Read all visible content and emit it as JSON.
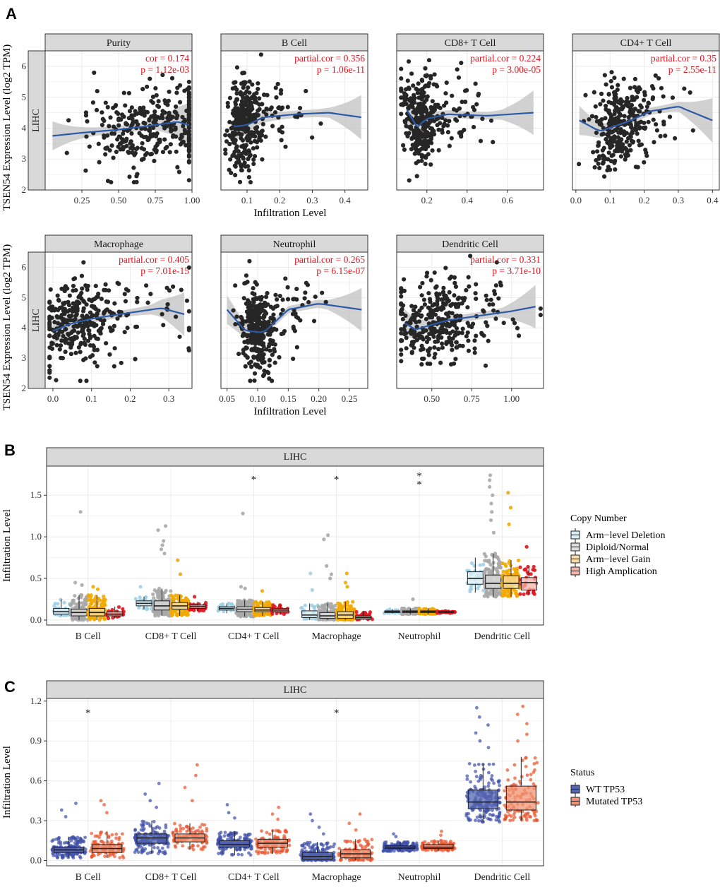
{
  "panel_labels": {
    "a": "A",
    "b": "B",
    "c": "C"
  },
  "chart_data": [
    {
      "type": "scatter",
      "panel": "A",
      "cancer": "LIHC",
      "ylabel": "TSEN54 Expression Level (log2 TPM)",
      "xlabel": "Infiltration Level",
      "ylim": [
        2,
        6.5
      ],
      "yticks": [
        2,
        3,
        4,
        5,
        6
      ],
      "yticklabels": [
        "2",
        "3",
        "4",
        "5",
        "6"
      ],
      "facets": [
        {
          "name": "Purity",
          "stat1": "cor = 0.174",
          "stat2": "p = 1.12e-03",
          "xlim": [
            0.0,
            1.0
          ],
          "xticks": [
            0.25,
            0.5,
            0.75,
            1.0
          ],
          "xticklabels": [
            "0.25",
            "0.50",
            "0.75",
            "1.00"
          ],
          "x_center": 0.68,
          "x_spread": 0.2,
          "skew": 0,
          "fit": [
            [
              0.05,
              3.75
            ],
            [
              0.25,
              3.85
            ],
            [
              0.5,
              3.95
            ],
            [
              0.75,
              4.1
            ],
            [
              0.9,
              4.2
            ],
            [
              0.98,
              4.1
            ]
          ]
        },
        {
          "name": "B Cell",
          "stat1": "partial.cor = 0.356",
          "stat2": "p = 1.06e-11",
          "xlim": [
            0.02,
            0.47
          ],
          "xticks": [
            0.1,
            0.2,
            0.3,
            0.4
          ],
          "xticklabels": [
            "0.1",
            "0.2",
            "0.3",
            "0.4"
          ],
          "x_center": 0.09,
          "x_spread": 0.025,
          "skew": 0.05,
          "fit": [
            [
              0.06,
              4.05
            ],
            [
              0.1,
              4.1
            ],
            [
              0.15,
              4.35
            ],
            [
              0.25,
              4.45
            ],
            [
              0.35,
              4.5
            ],
            [
              0.45,
              4.35
            ]
          ]
        },
        {
          "name": "CD8+ T Cell",
          "stat1": "partial.cor = 0.224",
          "stat2": "p = 3.00e-05",
          "xlim": [
            0.05,
            0.78
          ],
          "xticks": [
            0.2,
            0.4,
            0.6
          ],
          "xticklabels": [
            "0.2",
            "0.4",
            "0.6"
          ],
          "x_center": 0.17,
          "x_spread": 0.05,
          "skew": 0.08,
          "fit": [
            [
              0.1,
              4.6
            ],
            [
              0.15,
              4.05
            ],
            [
              0.2,
              4.3
            ],
            [
              0.3,
              4.45
            ],
            [
              0.5,
              4.4
            ],
            [
              0.73,
              4.5
            ]
          ]
        },
        {
          "name": "CD4+ T Cell",
          "stat1": "partial.cor = 0.35",
          "stat2": "p = 2.55e-11",
          "xlim": [
            -0.01,
            0.42
          ],
          "xticks": [
            0.0,
            0.1,
            0.2,
            0.3,
            0.4
          ],
          "xticklabels": [
            "0.0",
            "0.1",
            "0.2",
            "0.3",
            "0.4"
          ],
          "x_center": 0.12,
          "x_spread": 0.035,
          "skew": 0.05,
          "fit": [
            [
              0.01,
              4.25
            ],
            [
              0.07,
              3.9
            ],
            [
              0.15,
              4.2
            ],
            [
              0.22,
              4.55
            ],
            [
              0.3,
              4.7
            ],
            [
              0.4,
              4.25
            ]
          ]
        },
        {
          "name": "Macrophage",
          "stat1": "partial.cor = 0.405",
          "stat2": "p = 7.01e-15",
          "xlim": [
            -0.02,
            0.36
          ],
          "xticks": [
            0.0,
            0.1,
            0.2,
            0.3
          ],
          "xticklabels": [
            "0.0",
            "0.1",
            "0.2",
            "0.3"
          ],
          "x_center": 0.06,
          "x_spread": 0.05,
          "skew": 0.04,
          "fit": [
            [
              0.0,
              3.9
            ],
            [
              0.05,
              4.15
            ],
            [
              0.1,
              4.3
            ],
            [
              0.2,
              4.5
            ],
            [
              0.28,
              4.65
            ],
            [
              0.34,
              4.45
            ]
          ]
        },
        {
          "name": "Neutrophil",
          "stat1": "partial.cor = 0.265",
          "stat2": "p = 6.15e-07",
          "xlim": [
            0.04,
            0.28
          ],
          "xticks": [
            0.05,
            0.1,
            0.15,
            0.2,
            0.25
          ],
          "xticklabels": [
            "0.05",
            "0.10",
            "0.15",
            "0.20",
            "0.25"
          ],
          "x_center": 0.1,
          "x_spread": 0.014,
          "skew": 0.02,
          "fit": [
            [
              0.05,
              4.6
            ],
            [
              0.08,
              3.9
            ],
            [
              0.11,
              3.85
            ],
            [
              0.15,
              4.6
            ],
            [
              0.2,
              4.8
            ],
            [
              0.27,
              4.6
            ]
          ]
        },
        {
          "name": "Dendritic Cell",
          "stat1": "partial.cor = 0.331",
          "stat2": "p = 3.71e-10",
          "xlim": [
            0.28,
            1.2
          ],
          "xticks": [
            0.5,
            0.75,
            1.0
          ],
          "xticklabels": [
            "0.50",
            "0.75",
            "1.00"
          ],
          "x_center": 0.5,
          "x_spread": 0.12,
          "skew": 0.05,
          "fit": [
            [
              0.33,
              4.15
            ],
            [
              0.4,
              3.95
            ],
            [
              0.6,
              4.25
            ],
            [
              0.8,
              4.4
            ],
            [
              1.0,
              4.55
            ],
            [
              1.15,
              4.7
            ]
          ]
        }
      ]
    },
    {
      "type": "box",
      "panel": "B",
      "strip": "LIHC",
      "ylabel": "Infiltration Level",
      "ylim": [
        -0.06,
        1.85
      ],
      "yticks": [
        0.0,
        0.5,
        1.0,
        1.5
      ],
      "yticklabels": [
        "0.0",
        "0.5",
        "1.0",
        "1.5"
      ],
      "categories": [
        "B Cell",
        "CD8+ T Cell",
        "CD4+ T Cell",
        "Macrophage",
        "Neutrophil",
        "Dendritic Cell"
      ],
      "legend_title": "Copy Number",
      "groups": [
        {
          "name": "Arm−level Deletion",
          "fill": "#dbeef6",
          "point": "#9fd0e6"
        },
        {
          "name": "Diploid/Normal",
          "fill": "#dcdcdc",
          "point": "#a8a8a8"
        },
        {
          "name": "Arm−level Gain",
          "fill": "#f7dfa5",
          "point": "#f2a800"
        },
        {
          "name": "High Amplication",
          "fill": "#f6b6a9",
          "point": "#e0141e"
        }
      ],
      "boxes": [
        [
          [
            0.05,
            0.07,
            0.1,
            0.14,
            0.25
          ],
          [
            0.0,
            0.05,
            0.09,
            0.13,
            0.3
          ],
          [
            0.0,
            0.05,
            0.09,
            0.14,
            0.3
          ],
          [
            0.02,
            0.05,
            0.07,
            0.1,
            0.16
          ]
        ],
        [
          [
            0.13,
            0.17,
            0.2,
            0.23,
            0.28
          ],
          [
            0.05,
            0.12,
            0.17,
            0.23,
            0.38
          ],
          [
            0.05,
            0.13,
            0.17,
            0.21,
            0.3
          ],
          [
            0.11,
            0.14,
            0.16,
            0.18,
            0.22
          ]
        ],
        [
          [
            0.08,
            0.12,
            0.14,
            0.16,
            0.2
          ],
          [
            0.04,
            0.1,
            0.13,
            0.16,
            0.24
          ],
          [
            0.05,
            0.1,
            0.12,
            0.15,
            0.22
          ],
          [
            0.07,
            0.1,
            0.12,
            0.14,
            0.18
          ]
        ],
        [
          [
            0.0,
            0.03,
            0.06,
            0.11,
            0.2
          ],
          [
            0.0,
            0.02,
            0.05,
            0.09,
            0.2
          ],
          [
            0.0,
            0.02,
            0.06,
            0.1,
            0.22
          ],
          [
            0.0,
            0.01,
            0.03,
            0.05,
            0.1
          ]
        ],
        [
          [
            0.08,
            0.09,
            0.1,
            0.11,
            0.13
          ],
          [
            0.07,
            0.09,
            0.1,
            0.11,
            0.14
          ],
          [
            0.07,
            0.09,
            0.1,
            0.11,
            0.14
          ],
          [
            0.08,
            0.09,
            0.1,
            0.1,
            0.11
          ]
        ],
        [
          [
            0.33,
            0.43,
            0.5,
            0.58,
            0.75
          ],
          [
            0.28,
            0.38,
            0.44,
            0.54,
            0.8
          ],
          [
            0.28,
            0.38,
            0.44,
            0.53,
            0.72
          ],
          [
            0.3,
            0.36,
            0.45,
            0.51,
            0.65
          ]
        ]
      ],
      "outliers": [
        [
          [],
          [
            1.3,
            0.45,
            0.42
          ],
          [
            0.4,
            0.37
          ],
          []
        ],
        [
          [
            0.4
          ],
          [
            1.13,
            1.08,
            0.95,
            0.9,
            0.85,
            0.8
          ],
          [
            0.72,
            0.55
          ],
          [
            0.28
          ]
        ],
        [
          [],
          [
            1.28,
            0.4,
            0.38
          ],
          [
            0.35
          ],
          []
        ],
        [
          [
            0.56,
            0.36
          ],
          [
            1.02,
            0.97,
            0.65,
            0.55,
            0.5
          ],
          [
            0.56,
            0.45,
            0.4
          ],
          []
        ],
        [
          [],
          [
            0.25
          ],
          [],
          []
        ],
        [
          [],
          [
            1.74,
            1.68,
            1.6,
            1.5,
            1.4,
            1.3,
            1.2,
            1.05
          ],
          [
            1.53,
            1.35,
            1.15
          ],
          [
            0.88
          ]
        ]
      ],
      "significance": [
        {
          "category": 2,
          "text": "*",
          "y": 1.72
        },
        {
          "category": 3,
          "text": "*",
          "y": 1.72
        },
        {
          "category": 4,
          "text": "*",
          "y": 1.76
        },
        {
          "category": 4,
          "text": "*",
          "y": 1.66
        }
      ]
    },
    {
      "type": "box",
      "panel": "C",
      "strip": "LIHC",
      "ylabel": "Infiltration Level",
      "ylim": [
        -0.04,
        1.22
      ],
      "yticks": [
        0.0,
        0.3,
        0.6,
        0.9,
        1.2
      ],
      "yticklabels": [
        "0.0",
        "0.3",
        "0.6",
        "0.9",
        "1.2"
      ],
      "categories": [
        "B Cell",
        "CD8+ T Cell",
        "CD4+ T Cell",
        "Macrophage",
        "Neutrophil",
        "Dendritic Cell"
      ],
      "legend_title": "Status",
      "groups": [
        {
          "name": "WT TP53",
          "fill": "#5566b0",
          "point": "#3d4fa8"
        },
        {
          "name": "Mutated TP53",
          "fill": "#f29373",
          "point": "#e8532b"
        }
      ],
      "boxes": [
        [
          [
            0.02,
            0.06,
            0.08,
            0.1,
            0.18
          ],
          [
            0.02,
            0.06,
            0.09,
            0.12,
            0.22
          ]
        ],
        [
          [
            0.05,
            0.13,
            0.17,
            0.2,
            0.3
          ],
          [
            0.08,
            0.14,
            0.17,
            0.2,
            0.28
          ]
        ],
        [
          [
            0.04,
            0.1,
            0.12,
            0.15,
            0.22
          ],
          [
            0.05,
            0.1,
            0.13,
            0.16,
            0.23
          ]
        ],
        [
          [
            0.0,
            0.01,
            0.03,
            0.06,
            0.14
          ],
          [
            0.0,
            0.02,
            0.05,
            0.08,
            0.16
          ]
        ],
        [
          [
            0.07,
            0.09,
            0.1,
            0.11,
            0.14
          ],
          [
            0.07,
            0.09,
            0.1,
            0.12,
            0.15
          ]
        ],
        [
          [
            0.29,
            0.39,
            0.44,
            0.53,
            0.73
          ],
          [
            0.3,
            0.38,
            0.44,
            0.56,
            0.78
          ]
        ]
      ],
      "outliers": [
        [
          [
            0.43,
            0.38,
            0.33
          ],
          [
            0.45,
            0.42,
            0.36
          ]
        ],
        [
          [
            0.58,
            0.5,
            0.45,
            0.4
          ],
          [
            0.72,
            0.64,
            0.55,
            0.45
          ]
        ],
        [
          [
            0.42,
            0.36,
            0.32
          ],
          [
            0.4,
            0.35,
            0.31
          ]
        ],
        [
          [
            0.35,
            0.3,
            0.25,
            0.2
          ],
          [
            0.35,
            0.28,
            0.23
          ]
        ],
        [
          [
            0.2,
            0.18
          ],
          [
            0.22,
            0.19
          ]
        ],
        [
          [
            1.15,
            1.08,
            1.02,
            0.96,
            0.9,
            0.85
          ],
          [
            1.16,
            1.1,
            1.03,
            0.95,
            0.9
          ]
        ]
      ],
      "significance": [
        {
          "category": 0,
          "text": "*",
          "y": 1.13
        },
        {
          "category": 3,
          "text": "*",
          "y": 1.13
        }
      ]
    }
  ]
}
